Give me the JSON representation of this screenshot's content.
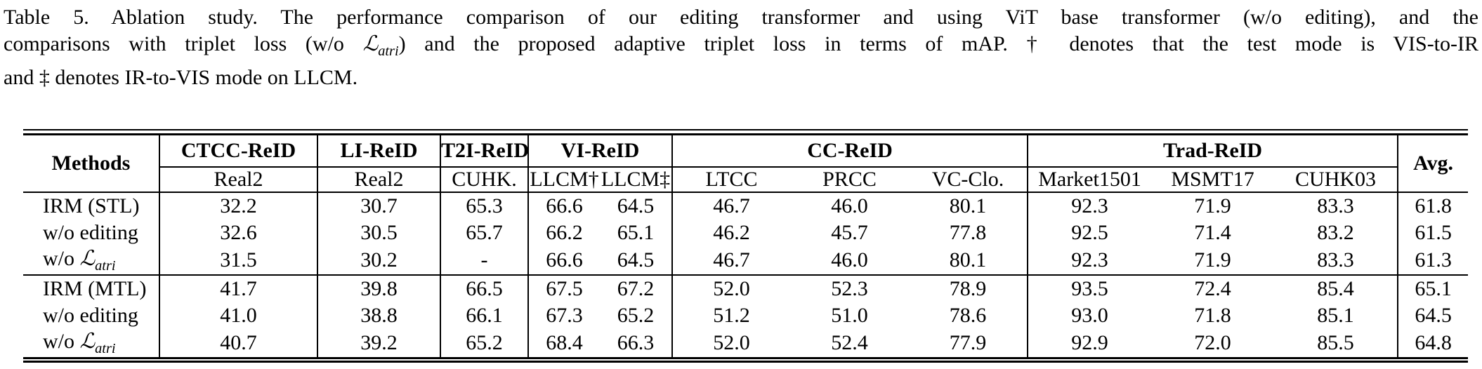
{
  "caption": {
    "line1": "Table 5. Ablation study. The performance comparison of our editing transformer and using ViT base transformer (w/o editing), and the",
    "line2_pre": "comparisons with triplet loss (w/o ",
    "math_symbol": "ℒ",
    "math_subscript": "atri",
    "line2_post": ") and the proposed adaptive triplet loss in terms of mAP. † denotes that the test mode is VIS-to-IR",
    "line3": "and ‡ denotes IR-to-VIS mode on LLCM."
  },
  "table": {
    "corner_header": "Methods",
    "avg_header": "Avg.",
    "math_symbol": "ℒ",
    "math_subscript": "atri",
    "groups": [
      {
        "label": "CTCC-ReID",
        "cols": [
          "Real2"
        ]
      },
      {
        "label": "LI-ReID",
        "cols": [
          "Real2"
        ]
      },
      {
        "label": "T2I-ReID",
        "cols": [
          "CUHK."
        ]
      },
      {
        "label": "VI-ReID",
        "cols": [
          "LLCM†",
          "LLCM‡"
        ]
      },
      {
        "label": "CC-ReID",
        "cols": [
          "LTCC",
          "PRCC",
          "VC-Clo."
        ]
      },
      {
        "label": "Trad-ReID",
        "cols": [
          "Market1501",
          "MSMT17",
          "CUHK03"
        ]
      }
    ],
    "rows": [
      {
        "method": "IRM (STL)",
        "math": false,
        "block_start": false,
        "values": [
          "32.2",
          "30.7",
          "65.3",
          "66.6",
          "64.5",
          "46.7",
          "46.0",
          "80.1",
          "92.3",
          "71.9",
          "83.3",
          "61.8"
        ]
      },
      {
        "method": "w/o editing",
        "math": false,
        "block_start": false,
        "values": [
          "32.6",
          "30.5",
          "65.7",
          "66.2",
          "65.1",
          "46.2",
          "45.7",
          "77.8",
          "92.5",
          "71.4",
          "83.2",
          "61.5"
        ]
      },
      {
        "method": "w/o ",
        "math": true,
        "block_start": false,
        "values": [
          "31.5",
          "30.2",
          "-",
          "66.6",
          "64.5",
          "46.7",
          "46.0",
          "80.1",
          "92.3",
          "71.9",
          "83.3",
          "61.3"
        ]
      },
      {
        "method": "IRM (MTL)",
        "math": false,
        "block_start": true,
        "values": [
          "41.7",
          "39.8",
          "66.5",
          "67.5",
          "67.2",
          "52.0",
          "52.3",
          "78.9",
          "93.5",
          "72.4",
          "85.4",
          "65.1"
        ]
      },
      {
        "method": "w/o editing",
        "math": false,
        "block_start": false,
        "values": [
          "41.0",
          "38.8",
          "66.1",
          "67.3",
          "65.2",
          "51.2",
          "51.0",
          "78.6",
          "93.0",
          "71.8",
          "85.1",
          "64.5"
        ]
      },
      {
        "method": "w/o ",
        "math": true,
        "block_start": false,
        "values": [
          "40.7",
          "39.2",
          "65.2",
          "68.4",
          "66.3",
          "52.0",
          "52.4",
          "77.9",
          "92.9",
          "72.0",
          "85.5",
          "64.8"
        ]
      }
    ]
  }
}
